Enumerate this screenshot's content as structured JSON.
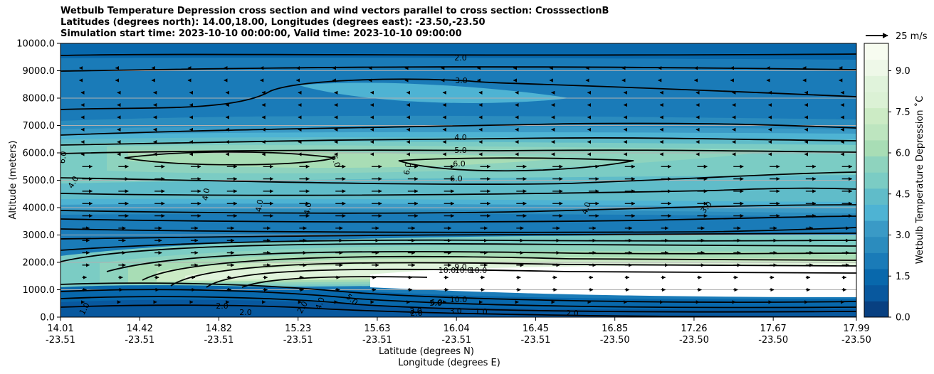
{
  "chart_data": {
    "type": "contour",
    "title_lines": [
      "Wetbulb Temperature Depression cross section and wind vectors parallel to cross section: CrosssectionB",
      "Latitudes (degrees north): 14.00,18.00, Longitudes (degrees east): -23.50,-23.50",
      "Simulation start time: 2023-10-10 00:00:00, Valid time: 2023-10-10 09:00:00"
    ],
    "xlabel_lat": "Latitude (degrees N)",
    "xlabel_lon": "Longitude (degrees E)",
    "ylabel": "Altitude (meters)",
    "ylim": [
      0,
      10000
    ],
    "y_ticks": [
      "0.0",
      "1000.0",
      "2000.0",
      "3000.0",
      "4000.0",
      "5000.0",
      "6000.0",
      "7000.0",
      "8000.0",
      "9000.0",
      "10000.0"
    ],
    "x_ticks_lat": [
      "14.01",
      "14.42",
      "14.82",
      "15.23",
      "15.63",
      "16.04",
      "16.45",
      "16.85",
      "17.26",
      "17.67",
      "17.99"
    ],
    "x_ticks_lon": [
      "-23.51",
      "-23.51",
      "-23.51",
      "-23.51",
      "-23.51",
      "-23.51",
      "-23.51",
      "-23.50",
      "-23.50",
      "-23.50",
      "-23.50"
    ],
    "colorbar": {
      "label": "Wetbulb Temperature Depression ˚C",
      "ticks": [
        "0.0",
        "1.5",
        "3.0",
        "4.5",
        "6.0",
        "7.5",
        "9.0"
      ],
      "range": [
        0,
        10
      ],
      "colors": [
        "#084081",
        "#08589e",
        "#0868ac",
        "#1a7bb8",
        "#2b8cbe",
        "#3a9ac6",
        "#4eb3d3",
        "#60bcc9",
        "#7bccc4",
        "#8ed3be",
        "#a8ddb5",
        "#bde5bf",
        "#ccebc5",
        "#dbf1d5",
        "#e0f3db",
        "#eef8e8",
        "#f7fcf0"
      ]
    },
    "wind_reference_label": "25 m/s",
    "contour_labels": [
      {
        "text": "2.0"
      },
      {
        "text": "3.0"
      },
      {
        "text": "4.0"
      },
      {
        "text": "5.0"
      },
      {
        "text": "6.0"
      },
      {
        "text": "6.0"
      },
      {
        "text": "6.0"
      },
      {
        "text": "6.0"
      },
      {
        "text": "6.0"
      },
      {
        "text": "4.0"
      },
      {
        "text": "4.0"
      },
      {
        "text": "4.0"
      },
      {
        "text": "4.0"
      },
      {
        "text": "4.0"
      },
      {
        "text": "3.0"
      },
      {
        "text": "9.0"
      },
      {
        "text": "10.0"
      },
      {
        "text": "10.0"
      },
      {
        "text": "10.0"
      },
      {
        "text": "10.0"
      },
      {
        "text": "6.0"
      },
      {
        "text": "5.0"
      },
      {
        "text": "3.0"
      },
      {
        "text": "2.0"
      },
      {
        "text": "3.0"
      },
      {
        "text": "2.0"
      },
      {
        "text": "1.0"
      },
      {
        "text": "2.0"
      },
      {
        "text": "2.0"
      },
      {
        "text": "4.0"
      },
      {
        "text": "5.0"
      },
      {
        "text": "1.0"
      },
      {
        "text": "2.0"
      }
    ]
  }
}
